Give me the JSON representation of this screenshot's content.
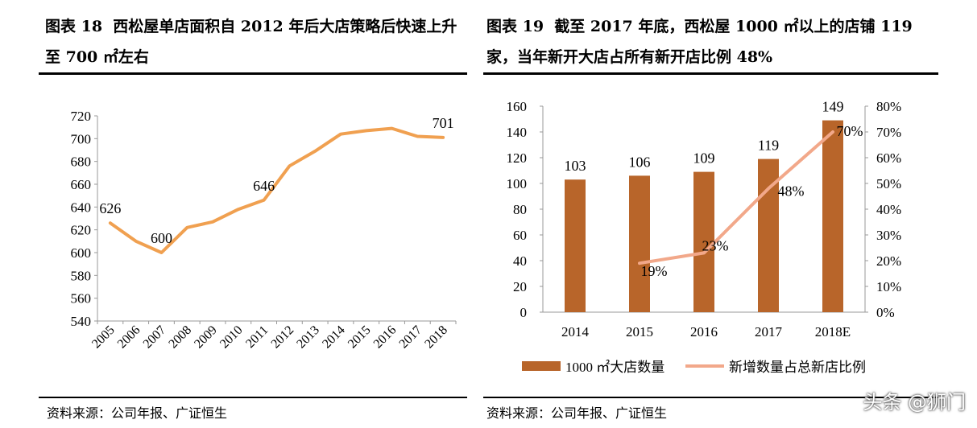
{
  "left_panel": {
    "title": "图表 18  西松屋单店面积自 2012 年后大店策略后快速上升至 700 ㎡左右",
    "source": "资料来源：公司年报、广证恒生"
  },
  "right_panel": {
    "title": "图表 19  截至 2017 年底，西松屋 1000 ㎡以上的店铺 119 家，当年新开大店占所有新开店比例 48%",
    "source": "资料来源：公司年报、广证恒生"
  },
  "watermark": "头条 @狮门",
  "colors": {
    "line": "#F0A050",
    "bar": "#B8652A",
    "pct_line": "#F2A88A"
  },
  "chart_data": [
    {
      "type": "line",
      "title": "",
      "categories": [
        "2005",
        "2006",
        "2007",
        "2008",
        "2009",
        "2010",
        "2011",
        "2012",
        "2013",
        "2014",
        "2015",
        "2016",
        "2017",
        "2018"
      ],
      "values": [
        626,
        610,
        600,
        622,
        627,
        638,
        646,
        676,
        689,
        704,
        707,
        709,
        702,
        701
      ],
      "labeled_points": [
        {
          "index": 0,
          "label": "626"
        },
        {
          "index": 2,
          "label": "600"
        },
        {
          "index": 6,
          "label": "646"
        },
        {
          "index": 13,
          "label": "701"
        }
      ],
      "ylim": [
        540,
        720
      ],
      "yticks": [
        "540",
        "560",
        "580",
        "600",
        "620",
        "640",
        "660",
        "680",
        "700",
        "720"
      ],
      "xlabel": "",
      "ylabel": ""
    },
    {
      "type": "bar",
      "categories": [
        "2014",
        "2015",
        "2016",
        "2017",
        "2018E"
      ],
      "series": [
        {
          "name": "1000 ㎡大店数量",
          "kind": "bar",
          "axis": "left",
          "values": [
            103,
            106,
            109,
            119,
            149
          ],
          "labels": [
            "103",
            "106",
            "109",
            "119",
            "149"
          ]
        },
        {
          "name": "新增数量占总新店比例",
          "kind": "line",
          "axis": "right",
          "values": [
            null,
            0.19,
            0.23,
            0.48,
            0.7
          ],
          "labels": [
            "",
            "19%",
            "23%",
            "48%",
            "70%"
          ]
        }
      ],
      "ylim_left": [
        0,
        160
      ],
      "yticks_left": [
        "0",
        "20",
        "40",
        "60",
        "80",
        "100",
        "120",
        "140",
        "160"
      ],
      "ylim_right": [
        0,
        0.8
      ],
      "yticks_right": [
        "0%",
        "10%",
        "20%",
        "30%",
        "40%",
        "50%",
        "60%",
        "70%",
        "80%"
      ],
      "legend_position": "bottom"
    }
  ]
}
